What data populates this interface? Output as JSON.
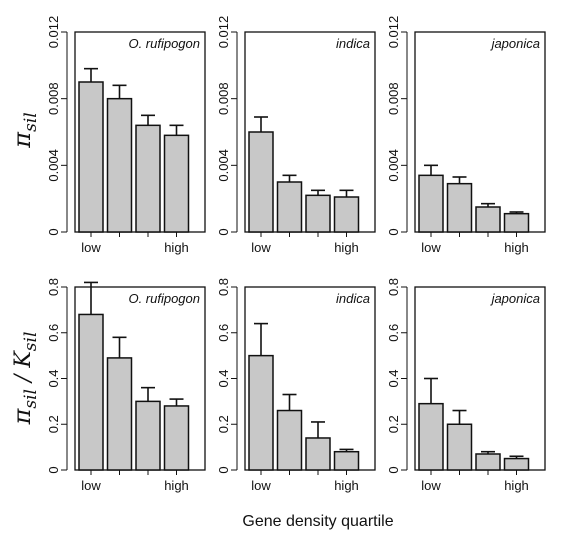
{
  "figure": {
    "xlabel": "Gene density quartile",
    "row_ylabels": [
      {
        "main": "π",
        "sub": "sil",
        "main2": "",
        "sub2": ""
      },
      {
        "main": "π",
        "sub": "sil",
        "main2": "K",
        "sub2": "sil"
      }
    ],
    "colors": {
      "bar_fill": "#c8c8c8",
      "bar_stroke": "#111111",
      "axis": "#111111"
    }
  },
  "chart_data": [
    {
      "type": "bar",
      "title": "O. rufipogon",
      "categories": [
        "low",
        "",
        "",
        "high"
      ],
      "values": [
        0.009,
        0.008,
        0.0064,
        0.0058
      ],
      "errors": [
        0.0008,
        0.0008,
        0.0006,
        0.0006
      ],
      "ylim": [
        0,
        0.012
      ],
      "yticks": [
        "0",
        "0.004",
        "0.008",
        "0.012"
      ]
    },
    {
      "type": "bar",
      "title": "indica",
      "categories": [
        "low",
        "",
        "",
        "high"
      ],
      "values": [
        0.006,
        0.003,
        0.0022,
        0.0021
      ],
      "errors": [
        0.0009,
        0.0004,
        0.0003,
        0.0004
      ],
      "ylim": [
        0,
        0.012
      ],
      "yticks": [
        "0",
        "0.004",
        "0.008",
        "0.012"
      ]
    },
    {
      "type": "bar",
      "title": "japonica",
      "categories": [
        "low",
        "",
        "",
        "high"
      ],
      "values": [
        0.0034,
        0.0029,
        0.0015,
        0.0011
      ],
      "errors": [
        0.0006,
        0.0004,
        0.0002,
        0.0001
      ],
      "ylim": [
        0,
        0.012
      ],
      "yticks": [
        "0",
        "0.004",
        "0.008",
        "0.012"
      ]
    },
    {
      "type": "bar",
      "title": "O. rufipogon",
      "categories": [
        "low",
        "",
        "",
        "high"
      ],
      "values": [
        0.68,
        0.49,
        0.3,
        0.28
      ],
      "errors": [
        0.14,
        0.09,
        0.06,
        0.03
      ],
      "ylim": [
        0,
        0.8
      ],
      "yticks": [
        "0",
        "0.2",
        "0.4",
        "0.6",
        "0.8"
      ]
    },
    {
      "type": "bar",
      "title": "indica",
      "categories": [
        "low",
        "",
        "",
        "high"
      ],
      "values": [
        0.5,
        0.26,
        0.14,
        0.08
      ],
      "errors": [
        0.14,
        0.07,
        0.07,
        0.01
      ],
      "ylim": [
        0,
        0.8
      ],
      "yticks": [
        "0",
        "0.2",
        "0.4",
        "0.6",
        "0.8"
      ]
    },
    {
      "type": "bar",
      "title": "japonica",
      "categories": [
        "low",
        "",
        "",
        "high"
      ],
      "values": [
        0.29,
        0.2,
        0.07,
        0.05
      ],
      "errors": [
        0.11,
        0.06,
        0.01,
        0.01
      ],
      "ylim": [
        0,
        0.8
      ],
      "yticks": [
        "0",
        "0.2",
        "0.4",
        "0.6",
        "0.8"
      ]
    }
  ]
}
